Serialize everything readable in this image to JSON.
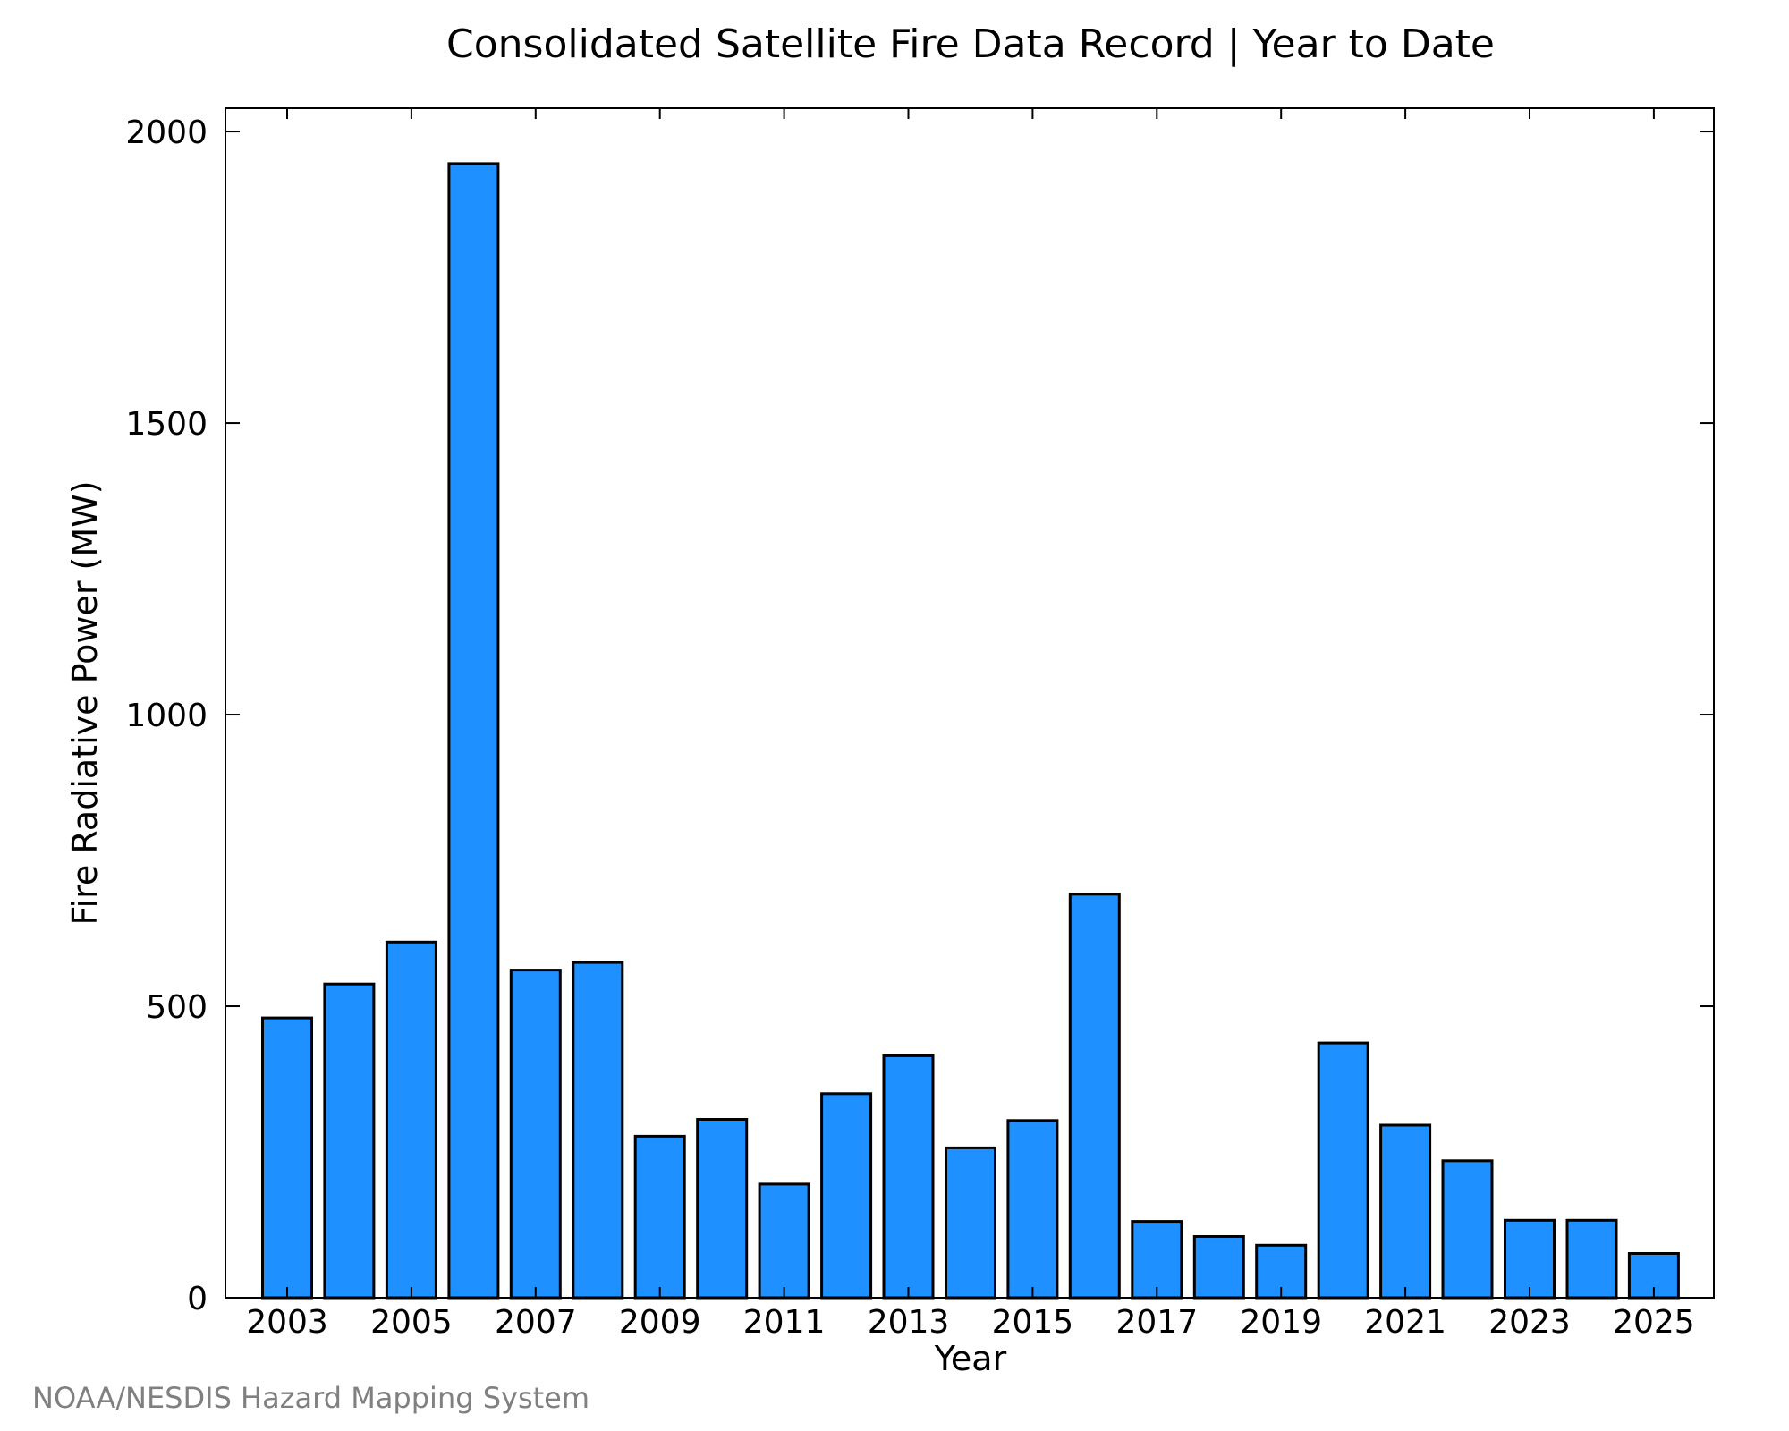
{
  "chart_data": {
    "type": "bar",
    "title": "Consolidated Satellite Fire Data Record | Year to Date",
    "xlabel": "Year",
    "ylabel": "Fire Radiative Power (MW)",
    "categories": [
      "2003",
      "2004",
      "2005",
      "2006",
      "2007",
      "2008",
      "2009",
      "2010",
      "2011",
      "2012",
      "2013",
      "2014",
      "2015",
      "2016",
      "2017",
      "2018",
      "2019",
      "2020",
      "2021",
      "2022",
      "2023",
      "2024",
      "2025"
    ],
    "values": [
      480,
      538,
      610,
      1945,
      562,
      575,
      277,
      306,
      195,
      350,
      415,
      257,
      304,
      692,
      131,
      105,
      90,
      437,
      296,
      235,
      133,
      133,
      76
    ],
    "x_tick_labels": [
      "2003",
      "2005",
      "2007",
      "2009",
      "2011",
      "2013",
      "2015",
      "2017",
      "2019",
      "2021",
      "2023",
      "2025"
    ],
    "y_ticks": [
      0,
      500,
      1000,
      1500,
      2000
    ],
    "ylim": [
      0,
      2040
    ],
    "grid": false,
    "bar_color": "#1e90ff",
    "edge_color": "#000000"
  },
  "credit": "NOAA/NESDIS Hazard Mapping System"
}
